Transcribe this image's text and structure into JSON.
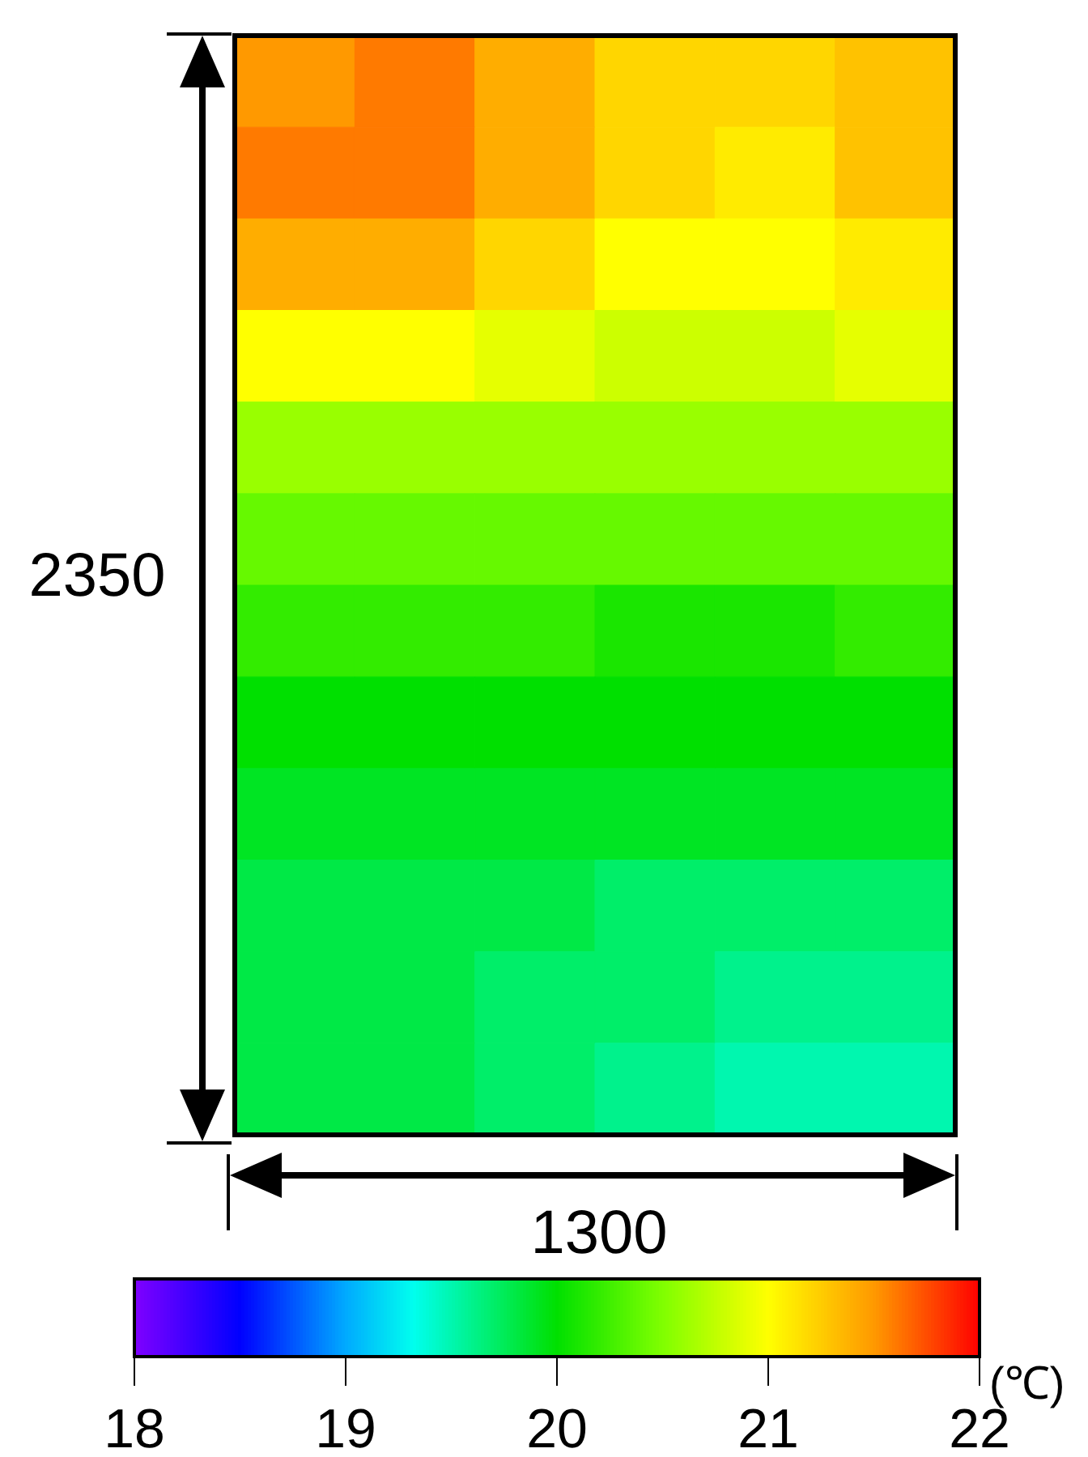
{
  "chart_data": {
    "type": "heatmap",
    "categories": [
      null,
      null,
      null,
      null,
      null,
      null
    ],
    "y_categories": [
      null,
      null,
      null,
      null,
      null,
      null,
      null,
      null,
      null,
      null,
      null,
      null
    ],
    "cells": [
      [
        21.5,
        21.6,
        21.4,
        21.2,
        21.2,
        21.3
      ],
      [
        21.6,
        21.6,
        21.4,
        21.2,
        21.1,
        21.3
      ],
      [
        21.4,
        21.4,
        21.2,
        21.0,
        21.0,
        21.1
      ],
      [
        21.0,
        21.0,
        20.9,
        20.8,
        20.8,
        20.9
      ],
      [
        20.6,
        20.6,
        20.6,
        20.6,
        20.6,
        20.6
      ],
      [
        20.4,
        20.4,
        20.4,
        20.4,
        20.4,
        20.4
      ],
      [
        20.2,
        20.2,
        20.2,
        20.1,
        20.1,
        20.2
      ],
      [
        20.0,
        20.0,
        20.0,
        20.0,
        20.0,
        20.0
      ],
      [
        19.9,
        19.9,
        19.9,
        19.9,
        19.9,
        19.9
      ],
      [
        19.8,
        19.8,
        19.8,
        19.7,
        19.7,
        19.7
      ],
      [
        19.8,
        19.8,
        19.7,
        19.7,
        19.6,
        19.6
      ],
      [
        19.8,
        19.8,
        19.7,
        19.6,
        19.5,
        19.5
      ]
    ],
    "clim": [
      18,
      22
    ],
    "cticks": [
      18,
      19,
      20,
      21,
      22
    ],
    "clabel": "(℃)",
    "annotations": [
      "2350",
      "1300"
    ]
  }
}
